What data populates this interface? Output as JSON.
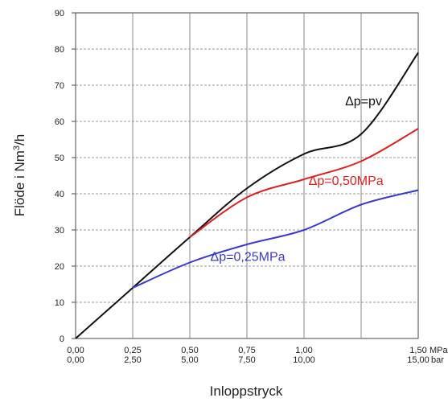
{
  "chart_data": {
    "type": "line",
    "title": "",
    "xlabel": "Inloppstryck",
    "ylabel": "Flöde i Nm³/h",
    "xlim": [
      0,
      1.5
    ],
    "ylim": [
      0,
      90
    ],
    "grid": true,
    "x_ticks_mpa": [
      "0,00",
      "0,25",
      "0,50",
      "0,75",
      "1,00",
      "1,50"
    ],
    "x_ticks_bar": [
      "0,00",
      "2,50",
      "5,00",
      "7,50",
      "10,00",
      "15,00"
    ],
    "x_unit_mpa": "MPa",
    "x_unit_bar": "bar",
    "y_ticks": [
      "0",
      "10",
      "20",
      "30",
      "40",
      "50",
      "60",
      "70",
      "80",
      "90"
    ],
    "series": [
      {
        "name": "Δp=pv",
        "color": "#111111",
        "x": [
          0,
          0.25,
          0.5,
          0.75,
          1.0,
          1.25,
          1.5
        ],
        "y": [
          0,
          14,
          28,
          41.5,
          51,
          56.5,
          79
        ]
      },
      {
        "name": "Δp=0,50MPa",
        "color": "#e02020",
        "x": [
          0.5,
          0.75,
          1.0,
          1.25,
          1.5
        ],
        "y": [
          28,
          39,
          44,
          49,
          58
        ]
      },
      {
        "name": "Δp=0,25MPa",
        "color": "#3a3ad0",
        "x": [
          0.25,
          0.5,
          0.75,
          1.0,
          1.25,
          1.5
        ],
        "y": [
          14,
          21,
          26,
          30,
          37,
          41
        ]
      }
    ]
  }
}
